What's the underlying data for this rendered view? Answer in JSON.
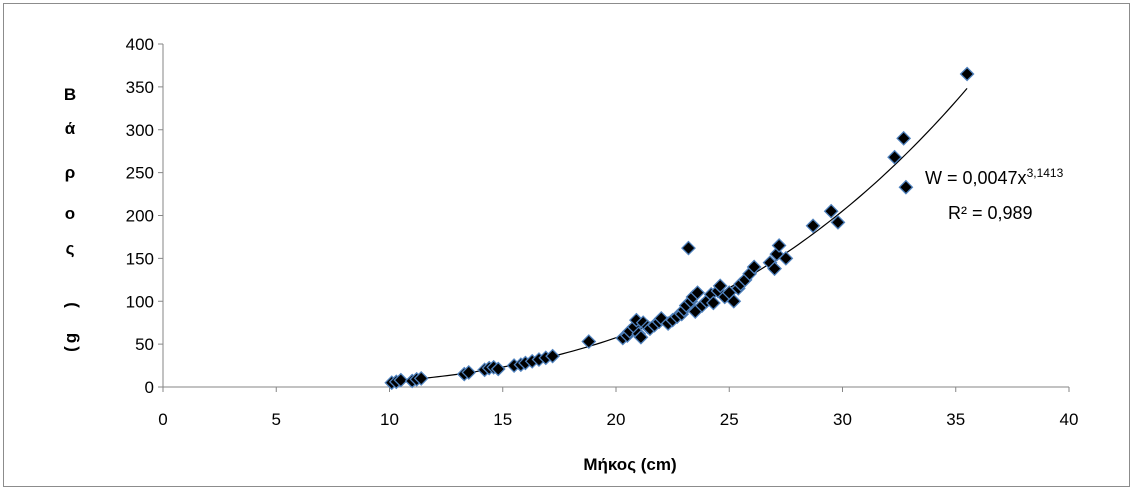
{
  "chart_data": {
    "type": "scatter",
    "xlabel": "Μήκος (cm)",
    "ylabel_chars": [
      "Β",
      "ά",
      "ρ",
      "ο",
      "ς",
      "(",
      "g",
      ")"
    ],
    "xlim": [
      0,
      40
    ],
    "ylim": [
      0,
      400
    ],
    "x_ticks": [
      0,
      5,
      10,
      15,
      20,
      25,
      30,
      35,
      40
    ],
    "y_ticks": [
      0,
      50,
      100,
      150,
      200,
      250,
      300,
      350,
      400
    ],
    "grid": false,
    "marker_color": "#000000",
    "marker_edge_color": "#4f81bd",
    "trendline": {
      "type": "power",
      "a": 0.0047,
      "b": 3.1413,
      "x_from": 10,
      "x_to": 35.5,
      "color": "#000000"
    },
    "equation": {
      "main": "W = 0,0047x",
      "exponent": "3,1413",
      "r2": "R² = 0,989"
    },
    "points": [
      [
        10.1,
        5
      ],
      [
        10.3,
        6
      ],
      [
        10.5,
        8
      ],
      [
        11.0,
        7
      ],
      [
        11.2,
        9
      ],
      [
        11.4,
        10
      ],
      [
        13.3,
        15
      ],
      [
        13.5,
        17
      ],
      [
        14.2,
        20
      ],
      [
        14.4,
        22
      ],
      [
        14.6,
        23
      ],
      [
        14.8,
        21
      ],
      [
        15.5,
        25
      ],
      [
        15.8,
        26
      ],
      [
        16.0,
        28
      ],
      [
        16.3,
        30
      ],
      [
        16.6,
        32
      ],
      [
        16.9,
        34
      ],
      [
        17.2,
        36
      ],
      [
        18.8,
        53
      ],
      [
        20.3,
        57
      ],
      [
        20.5,
        60
      ],
      [
        20.6,
        65
      ],
      [
        20.8,
        70
      ],
      [
        20.9,
        78
      ],
      [
        21.0,
        62
      ],
      [
        21.1,
        58
      ],
      [
        21.2,
        75
      ],
      [
        21.4,
        70
      ],
      [
        21.5,
        68
      ],
      [
        21.7,
        72
      ],
      [
        21.9,
        76
      ],
      [
        22.0,
        80
      ],
      [
        22.3,
        74
      ],
      [
        22.5,
        78
      ],
      [
        22.7,
        82
      ],
      [
        22.9,
        85
      ],
      [
        23.0,
        90
      ],
      [
        23.1,
        95
      ],
      [
        23.2,
        162
      ],
      [
        23.3,
        100
      ],
      [
        23.4,
        105
      ],
      [
        23.5,
        88
      ],
      [
        23.6,
        110
      ],
      [
        23.8,
        95
      ],
      [
        24.0,
        100
      ],
      [
        24.2,
        108
      ],
      [
        24.3,
        98
      ],
      [
        24.5,
        112
      ],
      [
        24.6,
        118
      ],
      [
        24.8,
        105
      ],
      [
        25.0,
        110
      ],
      [
        25.2,
        100
      ],
      [
        25.4,
        115
      ],
      [
        25.5,
        120
      ],
      [
        25.7,
        125
      ],
      [
        25.9,
        132
      ],
      [
        26.1,
        140
      ],
      [
        26.8,
        145
      ],
      [
        27.0,
        138
      ],
      [
        27.1,
        155
      ],
      [
        27.2,
        165
      ],
      [
        27.5,
        150
      ],
      [
        28.7,
        188
      ],
      [
        29.5,
        205
      ],
      [
        29.8,
        192
      ],
      [
        32.3,
        268
      ],
      [
        32.7,
        290
      ],
      [
        32.8,
        233
      ],
      [
        35.5,
        365
      ]
    ]
  }
}
